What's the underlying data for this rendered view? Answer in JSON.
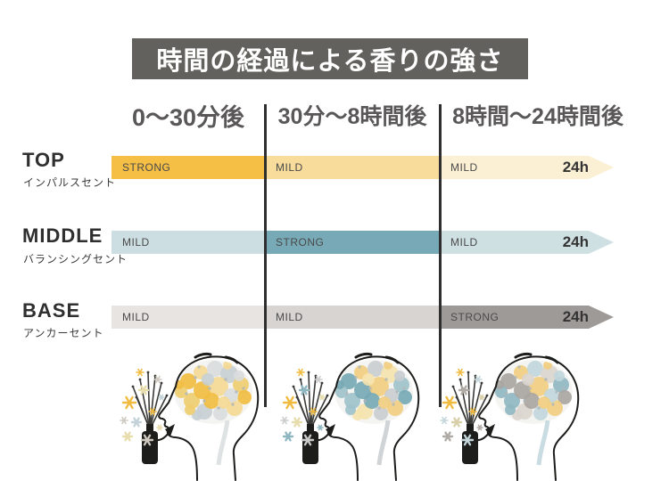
{
  "title": "時間の経過による香りの強さ",
  "columns": [
    "0〜30分後",
    "30分〜8時間後",
    "8時間〜24時間後"
  ],
  "arrow_end_label": "24h",
  "rows": [
    {
      "name": "TOP",
      "subtitle": "インパルスセント",
      "segments": [
        {
          "label": "STRONG",
          "color": "#F5BE44"
        },
        {
          "label": "MILD",
          "color": "#F8DC9B"
        },
        {
          "label": "MILD",
          "color": "#FBF0D3"
        }
      ]
    },
    {
      "name": "MIDDLE",
      "subtitle": "バランシングセント",
      "segments": [
        {
          "label": "MILD",
          "color": "#CDDEE2"
        },
        {
          "label": "STRONG",
          "color": "#77AAB6"
        },
        {
          "label": "MILD",
          "color": "#CFE0E3"
        }
      ]
    },
    {
      "name": "BASE",
      "subtitle": "アンカーセント",
      "segments": [
        {
          "label": "MILD",
          "color": "#E7E4E1"
        },
        {
          "label": "MILD",
          "color": "#D8D4D1"
        },
        {
          "label": "STRONG",
          "color": "#9E9A98"
        }
      ]
    }
  ],
  "figures": [
    {
      "name": "phase-1-head",
      "brain_colors": [
        "#F2BC3F",
        "#F6D992",
        "#D9DDDE",
        "#C6CFD4",
        "#EFCD6E"
      ],
      "sparkle_colors": [
        "#EFBB41",
        "#E7DCAC",
        "#CFC9C0",
        "#C2D2D8"
      ]
    },
    {
      "name": "phase-2-head",
      "brain_colors": [
        "#74A9B4",
        "#F2CE7E",
        "#C9CDD0",
        "#F6E3AD",
        "#9FC2CB"
      ],
      "sparkle_colors": [
        "#EFBB41",
        "#8FB7C1",
        "#CBCBCB",
        "#E7DCAC"
      ]
    },
    {
      "name": "phase-3-head",
      "brain_colors": [
        "#A8A49F",
        "#F2CE7E",
        "#C0D6DC",
        "#DAD5CE",
        "#8FB7C1"
      ],
      "sparkle_colors": [
        "#EFBB41",
        "#AFAAA4",
        "#C4D6DB",
        "#D8CFA9"
      ]
    }
  ],
  "palette": {
    "title_bg": "#62615D",
    "title_text": "#FFFFFF",
    "header_text": "#595757",
    "divider": "#2E2E2E",
    "segment_label_text": "#4A4A4A"
  },
  "chart_data": {
    "type": "table",
    "title": "時間の経過による香りの強さ",
    "categories": [
      "0〜30分後",
      "30分〜8時間後",
      "8時間〜24時間後"
    ],
    "series": [
      {
        "name": "TOP（インパルスセント）",
        "values": [
          "STRONG",
          "MILD",
          "MILD"
        ]
      },
      {
        "name": "MIDDLE（バランシングセント）",
        "values": [
          "MILD",
          "STRONG",
          "MILD"
        ]
      },
      {
        "name": "BASE（アンカーセント）",
        "values": [
          "MILD",
          "MILD",
          "STRONG"
        ]
      }
    ],
    "x_end_label": "24h",
    "layout": {
      "legend": "none",
      "grid": "column-dividers"
    }
  }
}
